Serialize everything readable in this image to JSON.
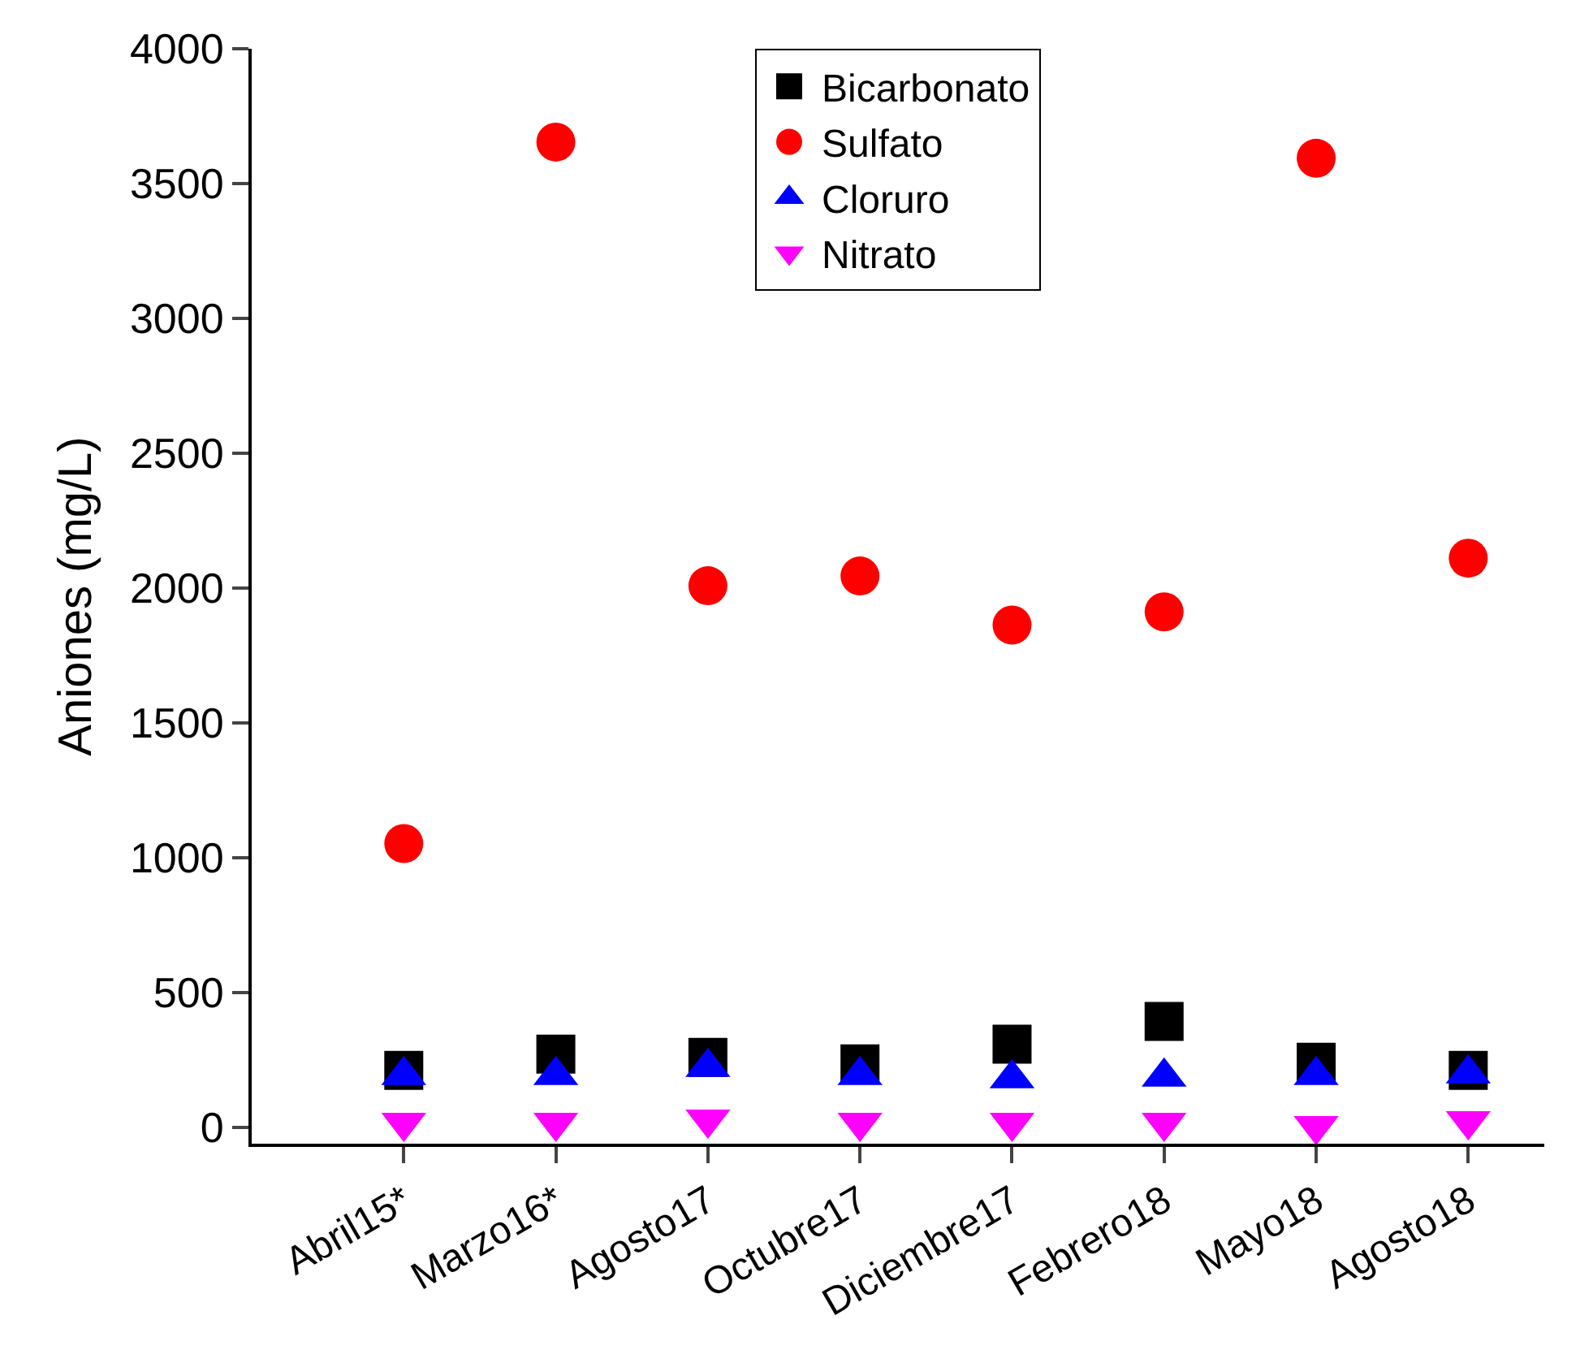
{
  "chart_data": {
    "type": "scatter",
    "ylabel": "Aniones (mg/L)",
    "categories": [
      "Abril15*",
      "Marzo16*",
      "Agosto17",
      "Octubre17",
      "Diciembre17",
      "Febrero18",
      "Mayo18",
      "Agosto18"
    ],
    "ylim": [
      -60,
      4000
    ],
    "yticks": [
      0,
      500,
      1000,
      1500,
      2000,
      2500,
      3000,
      3500,
      4000
    ],
    "legend": "top",
    "series": [
      {
        "name": "Bicarbonato",
        "color": "#000000",
        "marker": "square",
        "values": [
          212,
          272,
          260,
          236,
          309,
          393,
          242,
          212
        ]
      },
      {
        "name": "Sulfato",
        "color": "#ff0000",
        "marker": "circle",
        "values": [
          1053,
          3654,
          2009,
          2045,
          1863,
          1912,
          3594,
          2111
        ]
      },
      {
        "name": "Cloruro",
        "color": "#0000ff",
        "marker": "triangle",
        "values": [
          194,
          194,
          224,
          194,
          182,
          188,
          194,
          200
        ]
      },
      {
        "name": "Nitrato",
        "color": "#ff00ff",
        "marker": "triangle-down",
        "values": [
          18,
          18,
          30,
          18,
          18,
          18,
          6,
          24
        ]
      }
    ]
  }
}
